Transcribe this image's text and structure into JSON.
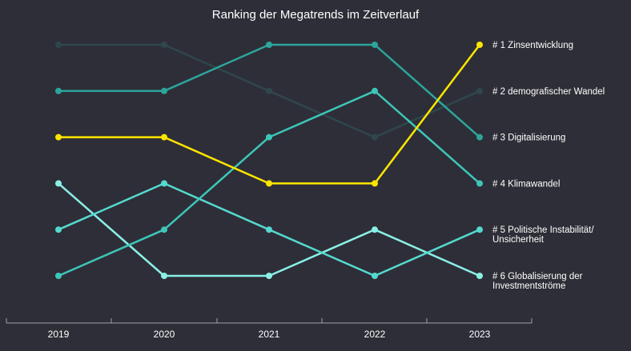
{
  "chart_data": {
    "type": "line",
    "title": "Ranking der Megatrends im Zeitverlauf",
    "x": [
      "2019",
      "2020",
      "2021",
      "2022",
      "2023"
    ],
    "y_inverted": true,
    "ylim": [
      1,
      6
    ],
    "grid": false,
    "series": [
      {
        "name": "# 1 Zinsentwicklung",
        "label_lines": [
          "# 1 Zinsentwicklung"
        ],
        "color": "#ffe600",
        "values": [
          3,
          3,
          4,
          4,
          1
        ]
      },
      {
        "name": "# 2 demografischer Wandel",
        "label_lines": [
          "# 2 demografischer Wandel"
        ],
        "color": "#2e474b",
        "values": [
          1,
          1,
          2,
          3,
          2
        ]
      },
      {
        "name": "# 3 Digitalisierung",
        "label_lines": [
          "# 3 Digitalisierung"
        ],
        "color": "#2ca59b",
        "values": [
          2,
          2,
          1,
          1,
          3
        ]
      },
      {
        "name": "# 4 Klimawandel",
        "label_lines": [
          "# 4 Klimawandel"
        ],
        "color": "#3dc6b8",
        "values": [
          6,
          5,
          3,
          2,
          4
        ]
      },
      {
        "name": "# 5 Politische Instabilität/ Unsicherheit",
        "label_lines": [
          "# 5 Politische Instabilität/",
          "Unsicherheit"
        ],
        "color": "#55d9cf",
        "values": [
          5,
          4,
          5,
          6,
          5
        ]
      },
      {
        "name": "# 6 Globalisierung der Investmentströme",
        "label_lines": [
          "# 6 Globalisierung der",
          "Investmentströme"
        ],
        "color": "#8af0e6",
        "values": [
          4,
          6,
          6,
          5,
          6
        ]
      }
    ]
  }
}
